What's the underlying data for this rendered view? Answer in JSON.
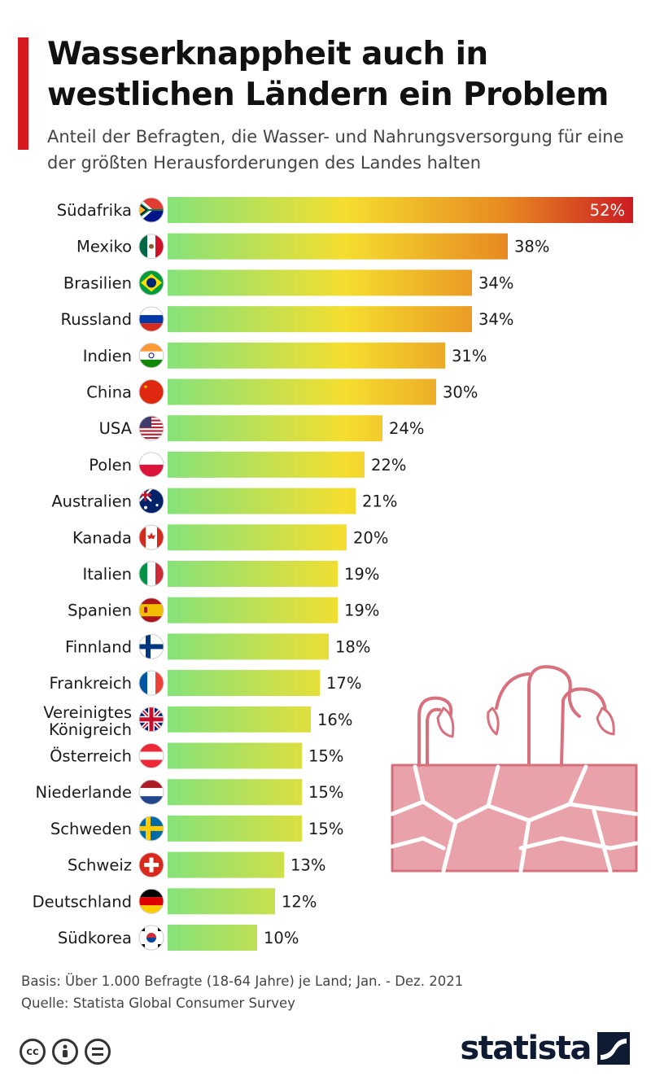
{
  "header": {
    "title": "Wasserknappheit auch in westlichen Ländern ein Problem",
    "subtitle": "Anteil der Befragten, die Wasser- und Nahrungsversorgung für eine der größten Herausforderungen des Landes halten"
  },
  "chart_data": {
    "type": "bar",
    "orientation": "horizontal",
    "title": "Wasserknappheit auch in westlichen Ländern ein Problem",
    "subtitle": "Anteil der Befragten, die Wasser- und Nahrungsversorgung für eine der größten Herausforderungen des Landes halten",
    "xlabel": "",
    "ylabel": "",
    "unit": "%",
    "xlim": [
      0,
      52
    ],
    "grid": false,
    "legend": "none",
    "categories": [
      "Südafrika",
      "Mexiko",
      "Brasilien",
      "Russland",
      "Indien",
      "China",
      "USA",
      "Polen",
      "Australien",
      "Kanada",
      "Italien",
      "Spanien",
      "Finnland",
      "Frankreich",
      "Vereinigtes Königreich",
      "Österreich",
      "Niederlande",
      "Schweden",
      "Schweiz",
      "Deutschland",
      "Südkorea"
    ],
    "flags": [
      "za",
      "mx",
      "br",
      "ru",
      "in",
      "cn",
      "us",
      "pl",
      "au",
      "ca",
      "it",
      "es",
      "fi",
      "fr",
      "gb",
      "at",
      "nl",
      "se",
      "ch",
      "de",
      "kr"
    ],
    "values": [
      52,
      38,
      34,
      34,
      31,
      30,
      24,
      22,
      21,
      20,
      19,
      19,
      18,
      17,
      16,
      15,
      15,
      15,
      13,
      12,
      10
    ],
    "value_labels": [
      "52%",
      "38%",
      "34%",
      "34%",
      "31%",
      "30%",
      "24%",
      "22%",
      "21%",
      "20%",
      "19%",
      "19%",
      "18%",
      "17%",
      "16%",
      "15%",
      "15%",
      "15%",
      "13%",
      "12%",
      "10%"
    ],
    "bar_gradient": [
      "#86e27a",
      "#f5de2f",
      "#e88b22",
      "#cc1b22"
    ]
  },
  "footer": {
    "basis": "Basis: Über 1.000 Befragte (18-64 Jahre) je Land; Jan. - Dez. 2021",
    "source": "Quelle: Statista Global Consumer Survey"
  },
  "brand": {
    "name": "statista",
    "color": "#0f1b33"
  },
  "decor": {
    "illustration": "dry-soil-sprouts-icon",
    "color": "#e8a0a8"
  },
  "license_icons": [
    "cc-icon",
    "by-icon",
    "nd-icon"
  ]
}
